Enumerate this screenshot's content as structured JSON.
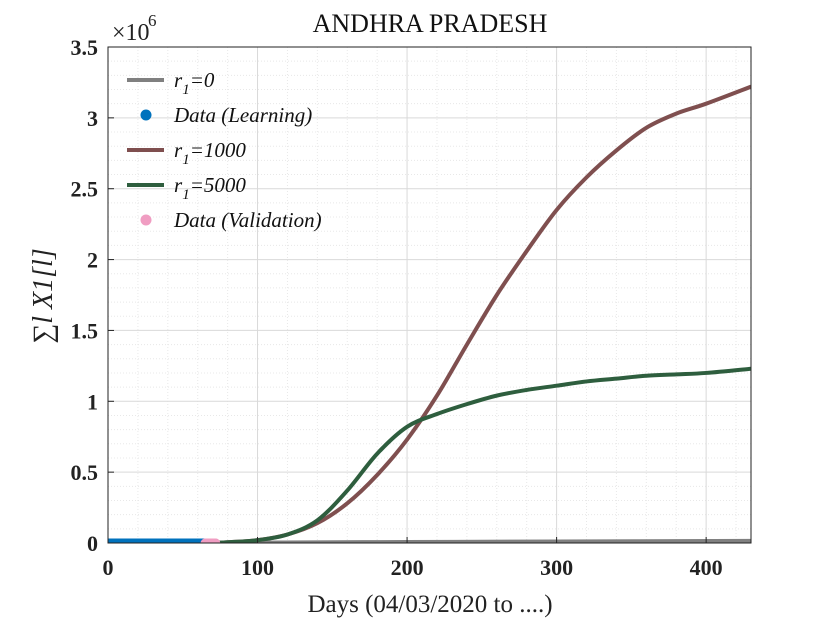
{
  "chart_data": {
    "type": "line",
    "title": "ANDHRA PRADESH",
    "xlabel": "Days (04/03/2020 to ....)",
    "ylabel": "∑l X1[l]",
    "y_multiplier": "×10",
    "y_multiplier_exp": "6",
    "xlim": [
      0,
      430
    ],
    "ylim": [
      0,
      3.5
    ],
    "x_ticks": [
      0,
      100,
      200,
      300,
      400
    ],
    "y_ticks": [
      0,
      0.5,
      1,
      1.5,
      2,
      2.5,
      3,
      3.5
    ],
    "x_tick_labels": [
      "0",
      "100",
      "200",
      "300",
      "400"
    ],
    "y_tick_labels": [
      "0",
      "0.5",
      "1",
      "1.5",
      "2",
      "2.5",
      "3",
      "3.5"
    ],
    "grid": true,
    "legend_position": "top-left",
    "series": [
      {
        "name": "r1=0",
        "style": "line",
        "color": "#808080",
        "x": [
          0,
          100,
          200,
          300,
          430
        ],
        "y": [
          0,
          0.003,
          0.007,
          0.011,
          0.015
        ]
      },
      {
        "name": "Data (Learning)",
        "style": "markers",
        "color": "#0072BD",
        "x": [
          0,
          5,
          10,
          15,
          20,
          25,
          30,
          35,
          40,
          45,
          50,
          55,
          60,
          65
        ],
        "y": [
          0,
          0,
          0,
          0,
          0,
          0,
          0,
          0,
          0,
          0,
          0,
          0,
          0,
          0
        ]
      },
      {
        "name": "r1=1000",
        "style": "line",
        "color": "#7F4F4F",
        "x": [
          70,
          80,
          100,
          120,
          140,
          160,
          180,
          200,
          220,
          240,
          260,
          280,
          300,
          320,
          340,
          360,
          380,
          400,
          430
        ],
        "y": [
          0,
          0.005,
          0.02,
          0.06,
          0.14,
          0.28,
          0.48,
          0.73,
          1.04,
          1.4,
          1.75,
          2.06,
          2.35,
          2.58,
          2.77,
          2.93,
          3.03,
          3.1,
          3.22
        ]
      },
      {
        "name": "r1=5000",
        "style": "line",
        "color": "#2E5E3E",
        "x": [
          70,
          80,
          100,
          120,
          140,
          160,
          180,
          200,
          220,
          240,
          260,
          280,
          300,
          320,
          340,
          360,
          380,
          400,
          430
        ],
        "y": [
          0,
          0.005,
          0.02,
          0.06,
          0.16,
          0.37,
          0.63,
          0.82,
          0.91,
          0.98,
          1.04,
          1.08,
          1.11,
          1.14,
          1.16,
          1.18,
          1.19,
          1.2,
          1.23
        ]
      },
      {
        "name": "Data (Validation)",
        "style": "markers",
        "color": "#F09DC2",
        "x": [
          65,
          66,
          67,
          68,
          69,
          70,
          71,
          72
        ],
        "y": [
          0,
          0,
          0,
          0,
          0,
          0,
          0,
          0
        ]
      }
    ]
  }
}
